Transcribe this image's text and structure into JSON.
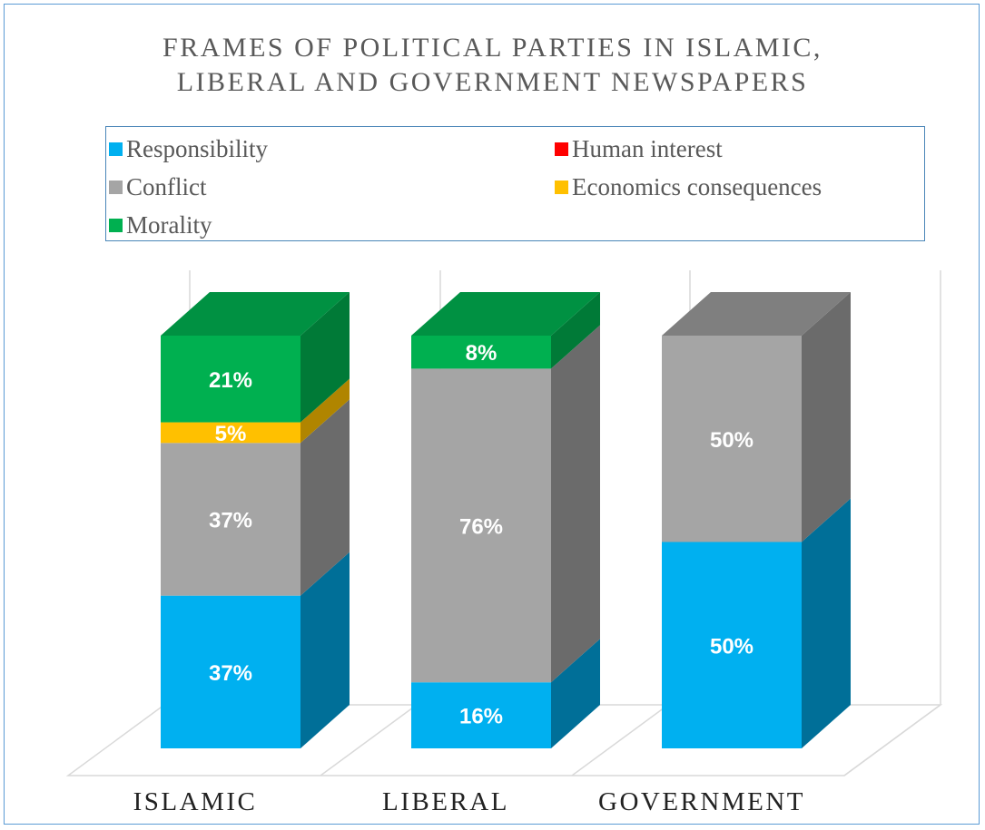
{
  "chart_data": {
    "type": "bar",
    "stacked": true,
    "three_d": true,
    "title_lines": [
      "FRAMES OF POLITICAL PARTIES IN ISLAMIC,",
      "LIBERAL AND GOVERNMENT NEWSPAPERS"
    ],
    "categories": [
      "ISLAMIC",
      "LIBERAL",
      "GOVERNMENT"
    ],
    "ylim": [
      0,
      100
    ],
    "legend_position": "top",
    "series": [
      {
        "name": "Responsibility",
        "color": "#00b0f0",
        "side_color": "#006f98",
        "top_color": "#0088bb",
        "values": [
          37,
          16,
          50
        ],
        "labels": [
          "37%",
          "16%",
          "50%"
        ]
      },
      {
        "name": "Human interest",
        "color": "#ff0000",
        "side_color": "#a00000",
        "top_color": "#c00000",
        "values": [
          0,
          0,
          0
        ],
        "labels": [
          "",
          "",
          ""
        ]
      },
      {
        "name": "Conflict",
        "color": "#a5a5a5",
        "side_color": "#6b6b6b",
        "top_color": "#7f7f7f",
        "values": [
          37,
          76,
          50
        ],
        "labels": [
          "37%",
          "76%",
          "50%"
        ]
      },
      {
        "name": "Economics consequences",
        "color": "#ffc000",
        "side_color": "#b08500",
        "top_color": "#d9a300",
        "values": [
          5,
          0,
          0
        ],
        "labels": [
          "5%",
          "",
          ""
        ]
      },
      {
        "name": "Morality",
        "color": "#00b050",
        "side_color": "#007a37",
        "top_color": "#009142",
        "values": [
          21,
          8,
          0
        ],
        "labels": [
          "21%",
          "8%",
          ""
        ]
      }
    ]
  }
}
